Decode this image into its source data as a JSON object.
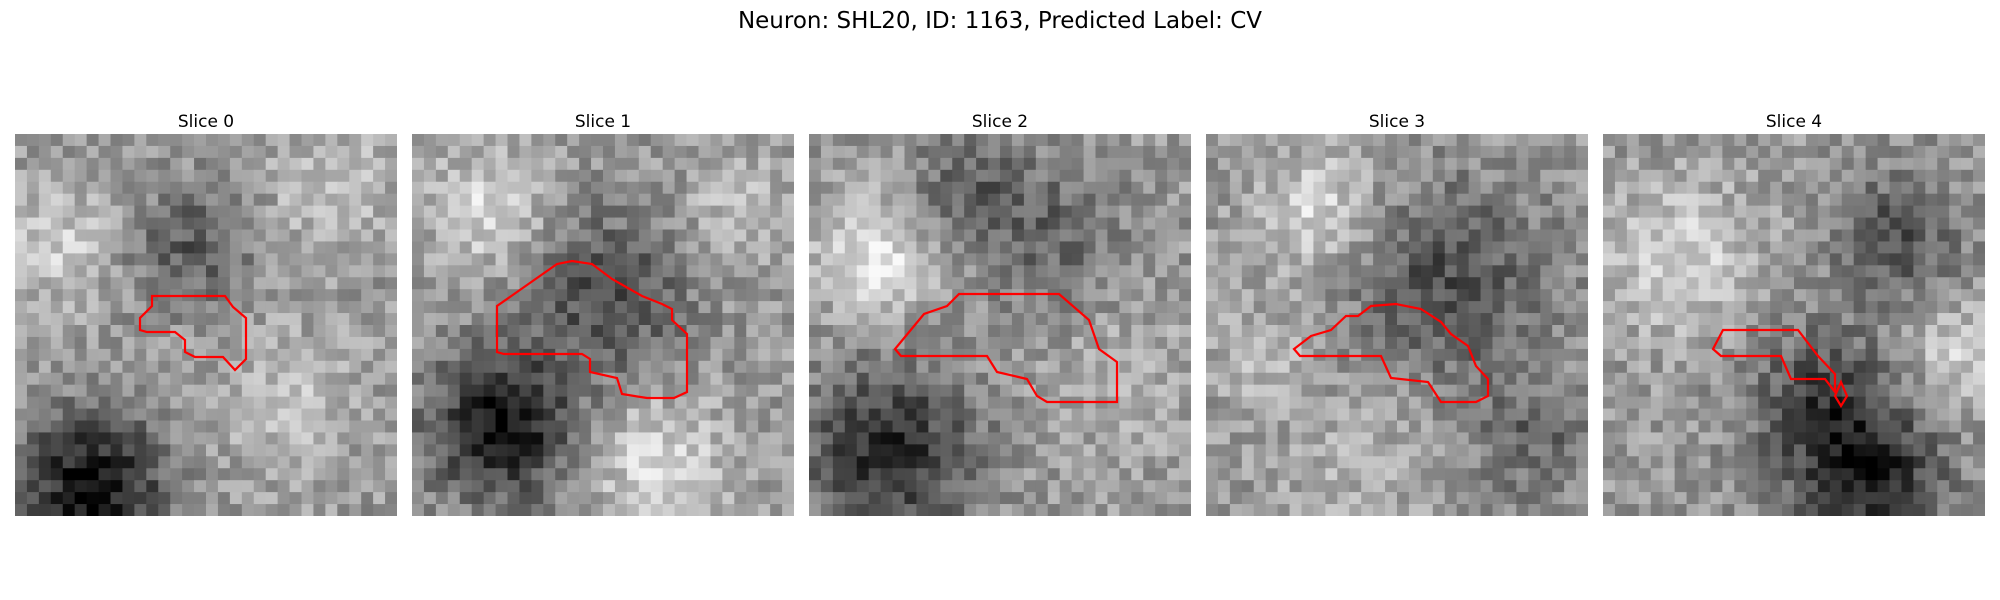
{
  "figure": {
    "title": "Neuron: SHL20, ID: 1163, Predicted Label: CV"
  },
  "colors": {
    "outline": "#ff0000",
    "background": "#ffffff"
  },
  "grid_resolution": 32,
  "panels": [
    {
      "title": "Slice 0",
      "seed": 11
    },
    {
      "title": "Slice 1",
      "seed": 23
    },
    {
      "title": "Slice 2",
      "seed": 37
    },
    {
      "title": "Slice 3",
      "seed": 51
    },
    {
      "title": "Slice 4",
      "seed": 67
    }
  ]
}
